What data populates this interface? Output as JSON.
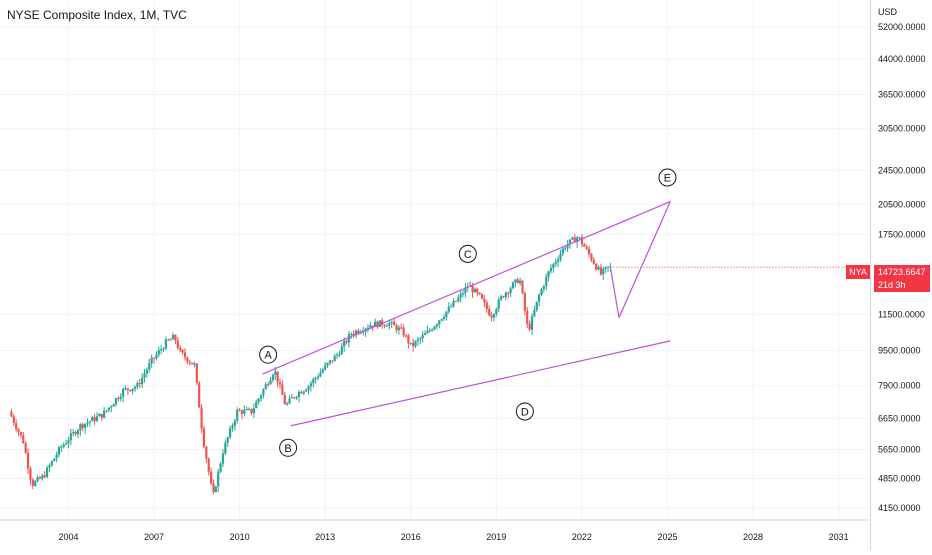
{
  "header": {
    "title": "NYSE Composite Index, 1M, TVC"
  },
  "price_axis": {
    "currency": "USD",
    "labels": [
      "52000.0000",
      "44000.0000",
      "36500.0000",
      "30500.0000",
      "24500.0000",
      "20500.0000",
      "17500.0000",
      "11500.0000",
      "9500.0000",
      "7900.0000",
      "6650.0000",
      "5650.0000",
      "4850.0000",
      "4150.0000"
    ]
  },
  "time_axis": {
    "labels": [
      "2004",
      "2007",
      "2010",
      "2013",
      "2016",
      "2019",
      "2022",
      "2025",
      "2028",
      "2031"
    ]
  },
  "last_price": {
    "ticker": "NYA",
    "value": "14723.6647",
    "countdown": "21d 3h"
  },
  "colors": {
    "up": "#26a69a",
    "down": "#ef5350",
    "drawing": "#c050d8",
    "price_tag": "#f23645",
    "grid": "#f0f3fa"
  },
  "chart_data": {
    "type": "candlestick",
    "title": "NYSE Composite Index, 1M, TVC",
    "scale": "log",
    "ylim": [
      3900,
      60000
    ],
    "xlim": [
      2001.6,
      2032.1
    ],
    "ylabel": "USD",
    "grid": true,
    "last_value": 14723.6647,
    "series": [
      {
        "name": "NYSE Composite Index",
        "points": [
          {
            "x": 2002.0,
            "y": 6900
          },
          {
            "x": 2002.5,
            "y": 5900
          },
          {
            "x": 2002.8,
            "y": 4700
          },
          {
            "x": 2003.2,
            "y": 4900
          },
          {
            "x": 2003.8,
            "y": 5700
          },
          {
            "x": 2004.5,
            "y": 6400
          },
          {
            "x": 2005.3,
            "y": 6800
          },
          {
            "x": 2006.0,
            "y": 7700
          },
          {
            "x": 2006.5,
            "y": 7900
          },
          {
            "x": 2007.0,
            "y": 9000
          },
          {
            "x": 2007.5,
            "y": 9900
          },
          {
            "x": 2007.8,
            "y": 10200
          },
          {
            "x": 2008.0,
            "y": 9400
          },
          {
            "x": 2008.5,
            "y": 8800
          },
          {
            "x": 2008.8,
            "y": 6000
          },
          {
            "x": 2009.15,
            "y": 4400
          },
          {
            "x": 2009.5,
            "y": 5600
          },
          {
            "x": 2010.0,
            "y": 6900
          },
          {
            "x": 2010.5,
            "y": 6900
          },
          {
            "x": 2011.3,
            "y": 8600
          },
          {
            "x": 2011.7,
            "y": 7100
          },
          {
            "x": 2012.0,
            "y": 7500
          },
          {
            "x": 2012.5,
            "y": 7900
          },
          {
            "x": 2013.0,
            "y": 8600
          },
          {
            "x": 2013.5,
            "y": 9300
          },
          {
            "x": 2014.0,
            "y": 10400
          },
          {
            "x": 2014.7,
            "y": 10900
          },
          {
            "x": 2015.3,
            "y": 11000
          },
          {
            "x": 2015.8,
            "y": 10500
          },
          {
            "x": 2016.1,
            "y": 9700
          },
          {
            "x": 2016.7,
            "y": 10500
          },
          {
            "x": 2017.3,
            "y": 11600
          },
          {
            "x": 2017.8,
            "y": 12600
          },
          {
            "x": 2018.1,
            "y": 13400
          },
          {
            "x": 2018.5,
            "y": 12600
          },
          {
            "x": 2018.9,
            "y": 11400
          },
          {
            "x": 2019.3,
            "y": 12700
          },
          {
            "x": 2019.9,
            "y": 13900
          },
          {
            "x": 2020.2,
            "y": 10500
          },
          {
            "x": 2020.6,
            "y": 12800
          },
          {
            "x": 2020.95,
            "y": 14500
          },
          {
            "x": 2021.5,
            "y": 16500
          },
          {
            "x": 2021.95,
            "y": 17300
          },
          {
            "x": 2022.4,
            "y": 15500
          },
          {
            "x": 2022.75,
            "y": 14200
          },
          {
            "x": 2023.0,
            "y": 14700
          }
        ]
      }
    ],
    "annotations": {
      "trendlines": [
        {
          "from": {
            "x": 2010.8,
            "y": 8400
          },
          "to": {
            "x": 2025.1,
            "y": 20800
          }
        },
        {
          "from": {
            "x": 2011.8,
            "y": 6400
          },
          "to": {
            "x": 2025.1,
            "y": 10000
          }
        },
        {
          "from": {
            "x": 2023.0,
            "y": 14700
          },
          "to": {
            "x": 2023.3,
            "y": 11300
          }
        },
        {
          "from": {
            "x": 2023.3,
            "y": 11300
          },
          "to": {
            "x": 2025.1,
            "y": 20800
          }
        }
      ],
      "wave_labels": [
        {
          "text": "A",
          "x": 2011.0,
          "y": 9300
        },
        {
          "text": "B",
          "x": 2011.7,
          "y": 5700
        },
        {
          "text": "C",
          "x": 2018.0,
          "y": 15800
        },
        {
          "text": "D",
          "x": 2020.0,
          "y": 6900
        },
        {
          "text": "E",
          "x": 2025.0,
          "y": 23600
        }
      ]
    }
  }
}
